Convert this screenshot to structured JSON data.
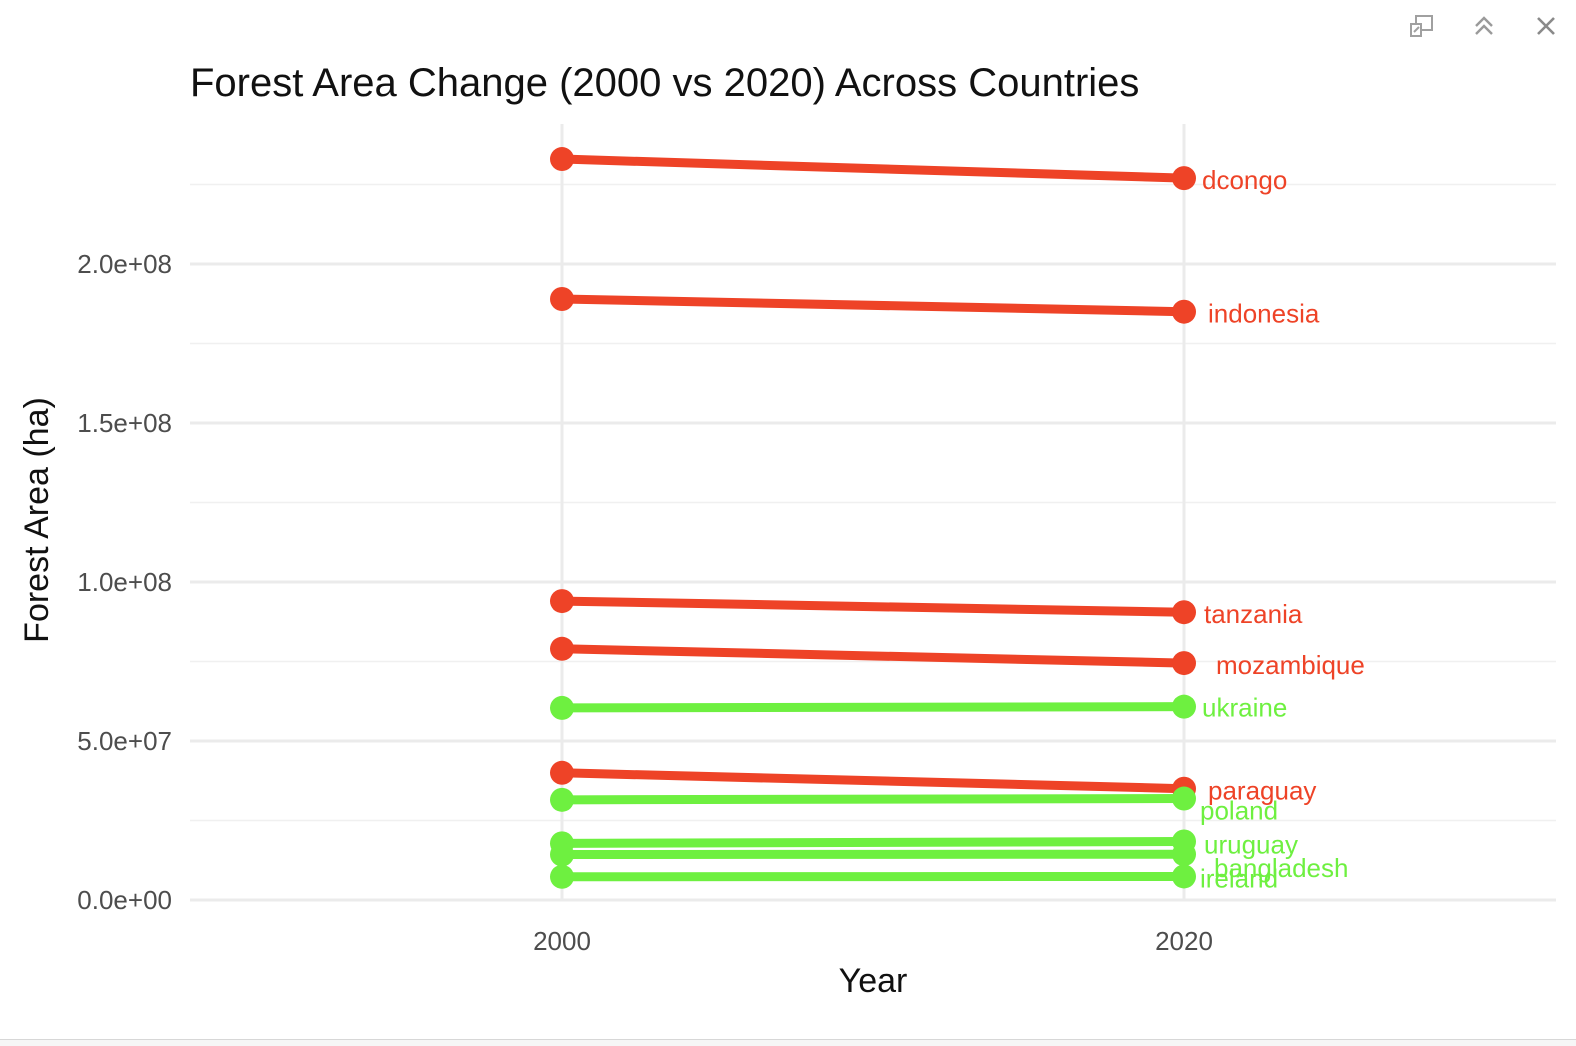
{
  "toolbar": {
    "buttons": [
      {
        "name": "export-icon"
      },
      {
        "name": "collapse-icon"
      },
      {
        "name": "close-icon"
      }
    ]
  },
  "chart_data": {
    "type": "line",
    "title": "Forest Area Change (2000 vs 2020) Across Countries",
    "xlabel": "Year",
    "ylabel": "Forest Area (ha)",
    "x": [
      "2000",
      "2020"
    ],
    "ylim": [
      0,
      238000000
    ],
    "yticks": [
      {
        "value": 0,
        "label": "0.0e+00"
      },
      {
        "value": 50000000,
        "label": "5.0e+07"
      },
      {
        "value": 100000000,
        "label": "1.0e+08"
      },
      {
        "value": 150000000,
        "label": "1.5e+08"
      },
      {
        "value": 200000000,
        "label": "2.0e+08"
      }
    ],
    "grid": true,
    "colors": {
      "decrease": "#EE4327",
      "increase": "#6EF040"
    },
    "series": [
      {
        "name": "dcongo",
        "values": [
          233000000,
          227000000
        ],
        "color": "#EE4327"
      },
      {
        "name": "indonesia",
        "values": [
          189000000,
          185000000
        ],
        "color": "#EE4327"
      },
      {
        "name": "tanzania",
        "values": [
          94000000,
          90500000
        ],
        "color": "#EE4327"
      },
      {
        "name": "mozambique",
        "values": [
          79000000,
          74500000
        ],
        "color": "#EE4327"
      },
      {
        "name": "ukraine",
        "values": [
          60400000,
          60800000
        ],
        "color": "#6EF040"
      },
      {
        "name": "paraguay",
        "values": [
          40000000,
          35000000
        ],
        "color": "#EE4327"
      },
      {
        "name": "poland",
        "values": [
          31500000,
          31900000
        ],
        "color": "#6EF040"
      },
      {
        "name": "uruguay",
        "values": [
          17800000,
          18400000
        ],
        "color": "#6EF040"
      },
      {
        "name": "bangladesh",
        "values": [
          14300000,
          14400000
        ],
        "color": "#6EF040"
      },
      {
        "name": "ireland",
        "values": [
          7300000,
          7400000
        ],
        "color": "#6EF040"
      }
    ]
  }
}
